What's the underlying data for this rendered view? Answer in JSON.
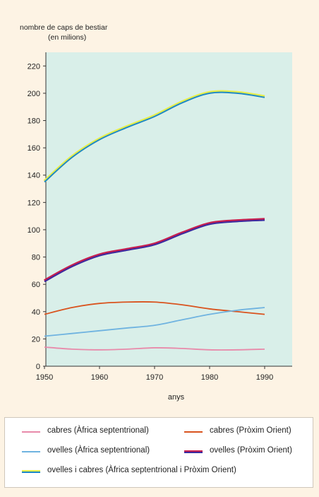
{
  "chart_data": {
    "type": "line",
    "title": "",
    "ylabel": [
      "nombre de caps de bestiar",
      "(en milions)"
    ],
    "xlabel": "anys",
    "x": [
      1950,
      1955,
      1960,
      1965,
      1970,
      1975,
      1980,
      1985,
      1990
    ],
    "xticks": [
      1950,
      1960,
      1970,
      1980,
      1990
    ],
    "xlim": [
      1950,
      1995
    ],
    "yticks": [
      0,
      20,
      40,
      60,
      80,
      100,
      120,
      140,
      160,
      180,
      200,
      220
    ],
    "ylim": [
      0,
      230
    ],
    "grid": false,
    "background": "#d9efe9",
    "series": [
      {
        "name": "ovelles i cabres (Àfrica septentrional i Pròxim Orient)",
        "color": "#1e88c8",
        "color2": "#e6ee4a",
        "values": [
          135,
          153,
          166,
          175,
          183,
          193,
          200,
          200,
          197
        ]
      },
      {
        "name": "ovelles (Pròxim Orient)",
        "color": "#3a2aa0",
        "color2": "#c81e4e",
        "values": [
          62,
          73,
          81,
          85,
          89,
          97,
          104,
          106,
          107
        ]
      },
      {
        "name": "cabres (Pròxim Orient)",
        "color": "#d9531e",
        "color2": null,
        "values": [
          38,
          43,
          46,
          47,
          47,
          45,
          42,
          40,
          38
        ]
      },
      {
        "name": "ovelles (Àfrica septentrional)",
        "color": "#6fb3e0",
        "color2": null,
        "values": [
          22,
          24,
          26,
          28,
          30,
          34,
          38,
          41,
          43
        ]
      },
      {
        "name": "cabres (Àfrica septentrional)",
        "color": "#e88aaa",
        "color2": null,
        "values": [
          14,
          12.5,
          12,
          12.5,
          13.5,
          13,
          12,
          12,
          12.5
        ]
      }
    ],
    "legend_placement": "bottom"
  },
  "legend": {
    "items": [
      {
        "label": "cabres (Àfrica septentrional)",
        "series": 4
      },
      {
        "label": "cabres (Pròxim Orient)",
        "series": 2
      },
      {
        "label": "ovelles (Àfrica septentrional)",
        "series": 3
      },
      {
        "label": "ovelles (Pròxim Orient)",
        "series": 1
      },
      {
        "label": "ovelles i cabres (Àfrica septentrional i Pròxim Orient)",
        "series": 0
      }
    ]
  }
}
